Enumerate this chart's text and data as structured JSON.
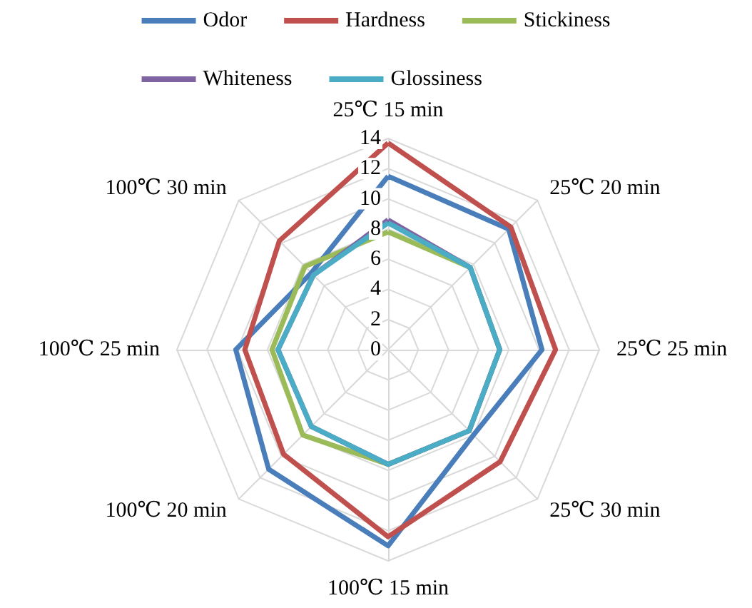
{
  "chart_data": {
    "type": "radar",
    "categories": [
      "25℃ 15 min",
      "25℃ 20 min",
      "25℃ 25 min",
      "25℃ 30 min",
      "100℃ 15 min",
      "100℃ 20 min",
      "100℃ 25 min",
      "100℃ 30 min"
    ],
    "series": [
      {
        "name": "Odor",
        "color": "#4a7ebb",
        "values": [
          11.5,
          11.3,
          10.2,
          8.0,
          13.0,
          11.2,
          10.1,
          7.2
        ]
      },
      {
        "name": "Hardness",
        "color": "#c0504d",
        "values": [
          13.7,
          11.5,
          11.1,
          10.5,
          12.4,
          9.8,
          9.5,
          10.2
        ]
      },
      {
        "name": "Stickiness",
        "color": "#9bbb59",
        "values": [
          7.8,
          7.7,
          7.4,
          7.6,
          7.6,
          8.0,
          7.7,
          7.8
        ]
      },
      {
        "name": "Whiteness",
        "color": "#8064a2",
        "values": [
          8.6,
          7.7,
          7.4,
          7.6,
          7.6,
          7.2,
          7.3,
          7.0
        ]
      },
      {
        "name": "Glossiness",
        "color": "#4bacc6",
        "values": [
          8.4,
          7.7,
          7.4,
          7.6,
          7.6,
          7.2,
          7.3,
          7.0
        ]
      }
    ],
    "ylim": [
      0,
      14
    ],
    "yticks": [
      0,
      2,
      4,
      6,
      8,
      10,
      12,
      14
    ],
    "grid": true,
    "legend": "top",
    "marker": "none",
    "line_style": "solid"
  }
}
